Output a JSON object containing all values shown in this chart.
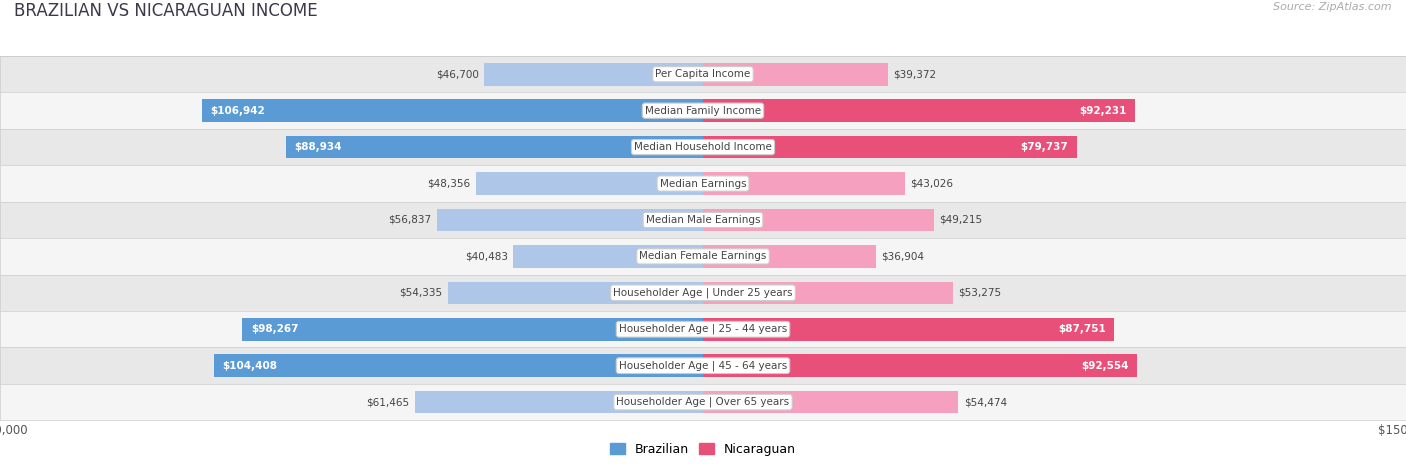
{
  "title": "BRAZILIAN VS NICARAGUAN INCOME",
  "source": "Source: ZipAtlas.com",
  "categories": [
    "Per Capita Income",
    "Median Family Income",
    "Median Household Income",
    "Median Earnings",
    "Median Male Earnings",
    "Median Female Earnings",
    "Householder Age | Under 25 years",
    "Householder Age | 25 - 44 years",
    "Householder Age | 45 - 64 years",
    "Householder Age | Over 65 years"
  ],
  "brazilian_values": [
    46700,
    106942,
    88934,
    48356,
    56837,
    40483,
    54335,
    98267,
    104408,
    61465
  ],
  "nicaraguan_values": [
    39372,
    92231,
    79737,
    43026,
    49215,
    36904,
    53275,
    87751,
    92554,
    54474
  ],
  "brazilian_color_light": "#aec6e8",
  "brazilian_color_dark": "#5b9bd5",
  "nicaraguan_color_light": "#f5a0be",
  "nicaraguan_color_dark": "#e8507a",
  "braz_inside_threshold": 75000,
  "nica_inside_threshold": 75000,
  "max_value": 150000,
  "legend_brazilian": "Brazilian",
  "legend_nicaraguan": "Nicaraguan",
  "page_bg": "#ffffff",
  "row_colors": [
    "#e8e8e8",
    "#f5f5f5"
  ],
  "title_color": "#3a3a4a",
  "label_inside_color": "#ffffff",
  "label_outside_color": "#444444",
  "source_color": "#aaaaaa",
  "tick_color": "#555555",
  "cat_label_color": "#444444",
  "cat_box_color": "#ffffff",
  "cat_box_edge": "#cccccc"
}
